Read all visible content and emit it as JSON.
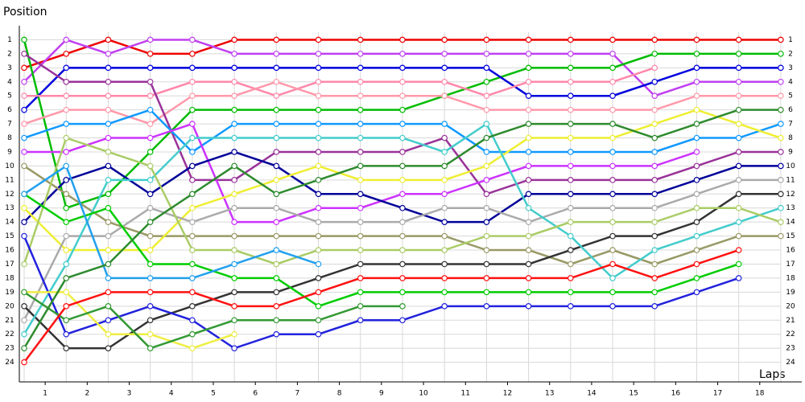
{
  "chart_data": {
    "type": "line",
    "y_label": "Position",
    "x_label": "Laps",
    "x": [
      0,
      1,
      2,
      3,
      4,
      5,
      6,
      7,
      8,
      9,
      10,
      11,
      12,
      13,
      14,
      15,
      16,
      17,
      18
    ],
    "xlim": [
      0,
      18.5
    ],
    "xticks": [
      {
        "value": 0.5,
        "label": "1"
      },
      {
        "value": 1.5,
        "label": "2"
      },
      {
        "value": 2.5,
        "label": "3"
      },
      {
        "value": 3.5,
        "label": "4"
      },
      {
        "value": 4.5,
        "label": "5"
      },
      {
        "value": 5.5,
        "label": "6"
      },
      {
        "value": 6.5,
        "label": "7"
      },
      {
        "value": 7.5,
        "label": "8"
      },
      {
        "value": 8.5,
        "label": "9"
      },
      {
        "value": 9.5,
        "label": "10"
      },
      {
        "value": 10.5,
        "label": "11"
      },
      {
        "value": 11.5,
        "label": "12"
      },
      {
        "value": 12.5,
        "label": "13"
      },
      {
        "value": 13.5,
        "label": "14"
      },
      {
        "value": 14.5,
        "label": "15"
      },
      {
        "value": 15.5,
        "label": "16"
      },
      {
        "value": 16.5,
        "label": "17"
      },
      {
        "value": 17.5,
        "label": "18"
      }
    ],
    "ylim": [
      0,
      25.4
    ],
    "inverted_y": true,
    "yticks": [
      1,
      2,
      3,
      4,
      5,
      6,
      7,
      8,
      9,
      10,
      11,
      12,
      13,
      14,
      15,
      16,
      17,
      18,
      19,
      20,
      21,
      22,
      23,
      24
    ],
    "grid": true,
    "series": [
      {
        "color": "#ee0000",
        "values": [
          3,
          2,
          1,
          2,
          2,
          1,
          1,
          1,
          1,
          1,
          1,
          1,
          1,
          1,
          1,
          1,
          1,
          1,
          1
        ]
      },
      {
        "color": "#c040f0",
        "values": [
          4,
          1,
          2,
          1,
          1,
          2,
          2,
          2,
          2,
          2,
          2,
          2,
          2,
          2,
          2,
          5,
          4,
          4,
          4
        ]
      },
      {
        "color": "#00bb00",
        "values": [
          1,
          13,
          12,
          9,
          6,
          6,
          6,
          6,
          6,
          6,
          5,
          4,
          3,
          3,
          3,
          2,
          2,
          2,
          2
        ]
      },
      {
        "color": "#0000dd",
        "values": [
          6,
          3,
          3,
          3,
          3,
          3,
          3,
          3,
          3,
          3,
          3,
          3,
          5,
          5,
          5,
          4,
          3,
          3,
          3
        ]
      },
      {
        "color": "#ff88aa",
        "values": [
          5,
          5,
          5,
          5,
          4,
          4,
          5,
          4,
          4,
          4,
          4,
          5,
          4,
          4,
          4,
          3,
          null,
          null,
          null
        ]
      },
      {
        "color": "#ff99aa",
        "values": [
          7,
          6,
          6,
          7,
          5,
          5,
          4,
          5,
          5,
          5,
          5,
          6,
          6,
          6,
          6,
          6,
          5,
          5,
          5
        ]
      },
      {
        "color": "#993399",
        "values": [
          2,
          4,
          4,
          4,
          11,
          11,
          9,
          9,
          9,
          9,
          8,
          12,
          11,
          11,
          11,
          11,
          10,
          9,
          9
        ]
      },
      {
        "color": "#1199ff",
        "values": [
          8,
          7,
          7,
          6,
          9,
          7,
          7,
          7,
          7,
          7,
          7,
          9,
          9,
          9,
          9,
          9,
          8,
          8,
          7
        ]
      },
      {
        "color": "#cc33ff",
        "values": [
          9,
          9,
          8,
          8,
          7,
          14,
          14,
          13,
          13,
          12,
          12,
          11,
          10,
          10,
          10,
          10,
          9,
          null,
          null
        ]
      },
      {
        "color": "#000099",
        "values": [
          14,
          11,
          10,
          12,
          10,
          9,
          10,
          12,
          12,
          13,
          14,
          14,
          12,
          12,
          12,
          12,
          11,
          10,
          10
        ]
      },
      {
        "color": "#999966",
        "values": [
          10,
          12,
          14,
          15,
          15,
          15,
          15,
          15,
          15,
          15,
          15,
          16,
          16,
          17,
          16,
          17,
          16,
          15,
          15
        ]
      },
      {
        "color": "#eeee33",
        "values": [
          13,
          16,
          16,
          16,
          13,
          12,
          11,
          10,
          11,
          11,
          11,
          10,
          8,
          8,
          8,
          7,
          6,
          7,
          8
        ]
      },
      {
        "color": "#aaaaaa",
        "values": [
          21,
          15,
          15,
          13,
          14,
          13,
          13,
          14,
          14,
          14,
          13,
          13,
          14,
          13,
          13,
          13,
          12,
          11,
          11
        ]
      },
      {
        "color": "#333333",
        "values": [
          20,
          23,
          23,
          21,
          20,
          19,
          19,
          18,
          17,
          17,
          17,
          17,
          17,
          16,
          15,
          15,
          14,
          12,
          12
        ]
      },
      {
        "color": "#44cccc",
        "values": [
          22,
          17,
          11,
          11,
          8,
          8,
          8,
          8,
          8,
          8,
          9,
          7,
          13,
          15,
          18,
          16,
          15,
          14,
          13
        ]
      },
      {
        "color": "#aacc66",
        "values": [
          17,
          8,
          9,
          10,
          16,
          16,
          17,
          16,
          16,
          16,
          16,
          15,
          15,
          14,
          14,
          14,
          13,
          13,
          14
        ]
      },
      {
        "color": "#00cc00",
        "values": [
          12,
          14,
          13,
          17,
          17,
          18,
          18,
          20,
          19,
          19,
          19,
          19,
          19,
          19,
          19,
          19,
          18,
          17,
          null
        ]
      },
      {
        "color": "#2222dd",
        "values": [
          15,
          22,
          21,
          20,
          21,
          23,
          22,
          22,
          21,
          21,
          20,
          20,
          20,
          20,
          20,
          20,
          19,
          18,
          null
        ]
      },
      {
        "color": "#eeee44",
        "values": [
          19,
          19,
          22,
          22,
          23,
          22,
          null,
          null,
          null,
          null,
          null,
          null,
          null,
          null,
          null,
          null,
          null,
          null,
          null
        ]
      },
      {
        "color": "#22a0ee",
        "values": [
          12,
          10,
          18,
          18,
          18,
          17,
          16,
          17,
          null,
          null,
          null,
          null,
          null,
          null,
          null,
          null,
          null,
          null,
          null
        ]
      },
      {
        "color": "#339933",
        "values": [
          19,
          21,
          20,
          23,
          22,
          21,
          21,
          21,
          20,
          20,
          null,
          null,
          null,
          null,
          null,
          null,
          null,
          null,
          null
        ]
      },
      {
        "color": "#ff1111",
        "values": [
          24,
          20,
          19,
          19,
          19,
          20,
          20,
          19,
          18,
          18,
          18,
          18,
          18,
          18,
          17,
          18,
          17,
          16,
          null
        ]
      },
      {
        "color": "#2e8b2e",
        "values": [
          23,
          18,
          17,
          14,
          12,
          10,
          12,
          11,
          10,
          10,
          10,
          8,
          7,
          7,
          7,
          8,
          7,
          6,
          6
        ]
      }
    ]
  }
}
